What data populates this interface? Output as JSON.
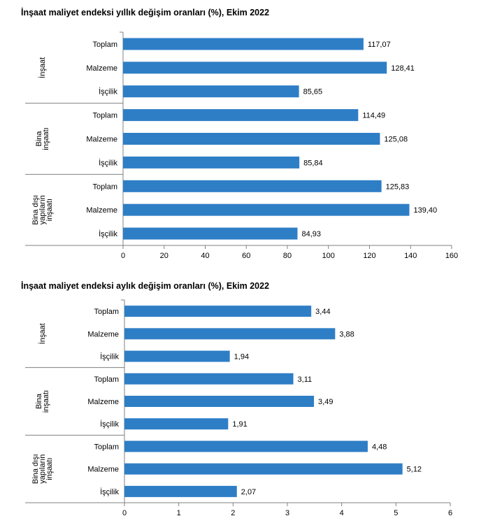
{
  "colors": {
    "bar": "#2e7ec6",
    "axis": "#808080"
  },
  "chart_data": [
    {
      "type": "bar",
      "title": "İnşaat maliyet endeksi yıllık değişim oranları (%), Ekim 2022",
      "groups": [
        {
          "label_lines": [
            "İnşaat"
          ],
          "categories": [
            "Toplam",
            "Malzeme",
            "İşçilik"
          ],
          "values": [
            117.07,
            128.41,
            85.65
          ],
          "value_labels": [
            "117,07",
            "128,41",
            "85,65"
          ]
        },
        {
          "label_lines": [
            "Bina",
            "inşaatı"
          ],
          "categories": [
            "Toplam",
            "Malzeme",
            "İşçilik"
          ],
          "values": [
            114.49,
            125.08,
            85.84
          ],
          "value_labels": [
            "114,49",
            "125,08",
            "85,84"
          ]
        },
        {
          "label_lines": [
            "Bina dışı",
            "yapıların",
            "inşaatı"
          ],
          "categories": [
            "Toplam",
            "Malzeme",
            "İşçilik"
          ],
          "values": [
            125.83,
            139.4,
            84.93
          ],
          "value_labels": [
            "125,83",
            "139,40",
            "84,93"
          ]
        }
      ],
      "xlim": [
        0,
        160
      ],
      "xticks": [
        "0",
        "20",
        "40",
        "60",
        "80",
        "100",
        "120",
        "140",
        "160"
      ],
      "grid": false
    },
    {
      "type": "bar",
      "title": "İnşaat maliyet endeksi aylık değişim oranları (%), Ekim 2022",
      "groups": [
        {
          "label_lines": [
            "İnşaat"
          ],
          "categories": [
            "Toplam",
            "Malzeme",
            "İşçilik"
          ],
          "values": [
            3.44,
            3.88,
            1.94
          ],
          "value_labels": [
            "3,44",
            "3,88",
            "1,94"
          ]
        },
        {
          "label_lines": [
            "Bina",
            "inşaatı"
          ],
          "categories": [
            "Toplam",
            "Malzeme",
            "İşçilik"
          ],
          "values": [
            3.11,
            3.49,
            1.91
          ],
          "value_labels": [
            "3,11",
            "3,49",
            "1,91"
          ]
        },
        {
          "label_lines": [
            "Bina dışı",
            "yapıların",
            "inşaatı"
          ],
          "categories": [
            "Toplam",
            "Malzeme",
            "İşçilik"
          ],
          "values": [
            4.48,
            5.12,
            2.07
          ],
          "value_labels": [
            "4,48",
            "5,12",
            "2,07"
          ]
        }
      ],
      "xlim": [
        0,
        6
      ],
      "xticks": [
        "0",
        "1",
        "2",
        "3",
        "4",
        "5",
        "6"
      ],
      "grid": false
    }
  ]
}
